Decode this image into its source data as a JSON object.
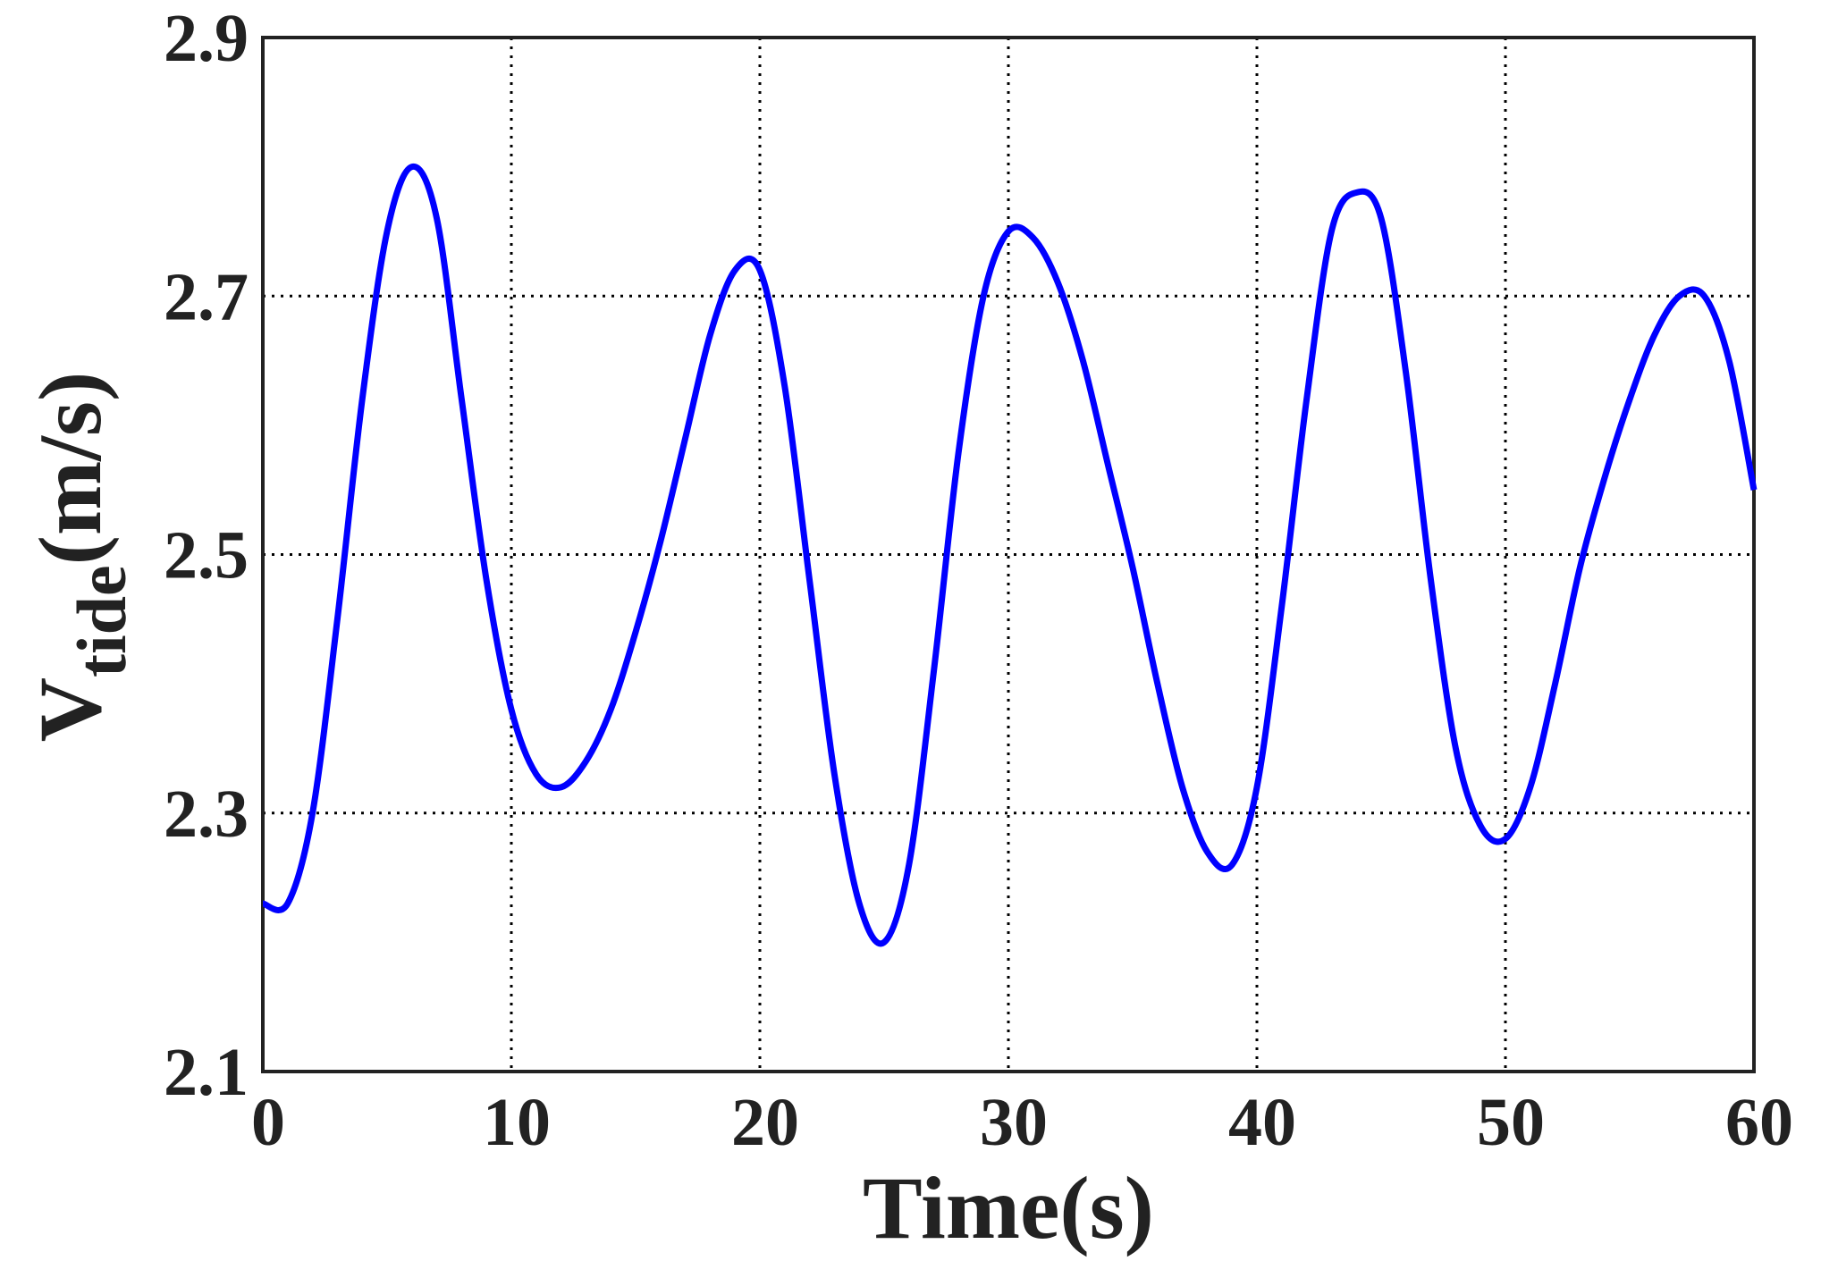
{
  "chart_data": {
    "type": "line",
    "xlabel": "Time(s)",
    "ylabel": {
      "base": "V",
      "subscript": "tide",
      "suffix": "(m/s)"
    },
    "x": [
      0,
      1,
      2,
      3,
      4,
      5,
      6,
      7,
      8,
      9,
      10,
      11,
      12,
      13,
      14,
      15,
      16,
      17,
      18,
      19,
      20,
      21,
      22,
      23,
      24,
      25,
      26,
      27,
      28,
      29,
      30,
      31,
      32,
      33,
      34,
      35,
      36,
      37,
      38,
      39,
      40,
      41,
      42,
      43,
      44,
      45,
      46,
      47,
      48,
      49,
      50,
      51,
      52,
      53,
      54,
      55,
      56,
      57,
      58,
      59,
      60
    ],
    "series": [
      {
        "color": "#0000ff",
        "values": [
          2.23,
          2.23,
          2.3,
          2.45,
          2.62,
          2.75,
          2.8,
          2.76,
          2.62,
          2.48,
          2.38,
          2.33,
          2.32,
          2.34,
          2.38,
          2.44,
          2.51,
          2.59,
          2.67,
          2.72,
          2.72,
          2.63,
          2.48,
          2.33,
          2.23,
          2.2,
          2.26,
          2.41,
          2.58,
          2.7,
          2.75,
          2.745,
          2.71,
          2.65,
          2.57,
          2.49,
          2.4,
          2.32,
          2.27,
          2.26,
          2.32,
          2.46,
          2.62,
          2.75,
          2.78,
          2.76,
          2.64,
          2.48,
          2.35,
          2.29,
          2.28,
          2.32,
          2.4,
          2.49,
          2.56,
          2.62,
          2.67,
          2.7,
          2.7,
          2.65,
          2.55
        ]
      }
    ],
    "xlim": [
      0,
      60
    ],
    "xticks": [
      0,
      10,
      20,
      30,
      40,
      50,
      60
    ],
    "ylim": [
      2.1,
      2.9
    ],
    "yticks": [
      2.1,
      2.3,
      2.5,
      2.7,
      2.9
    ],
    "grid": true
  }
}
